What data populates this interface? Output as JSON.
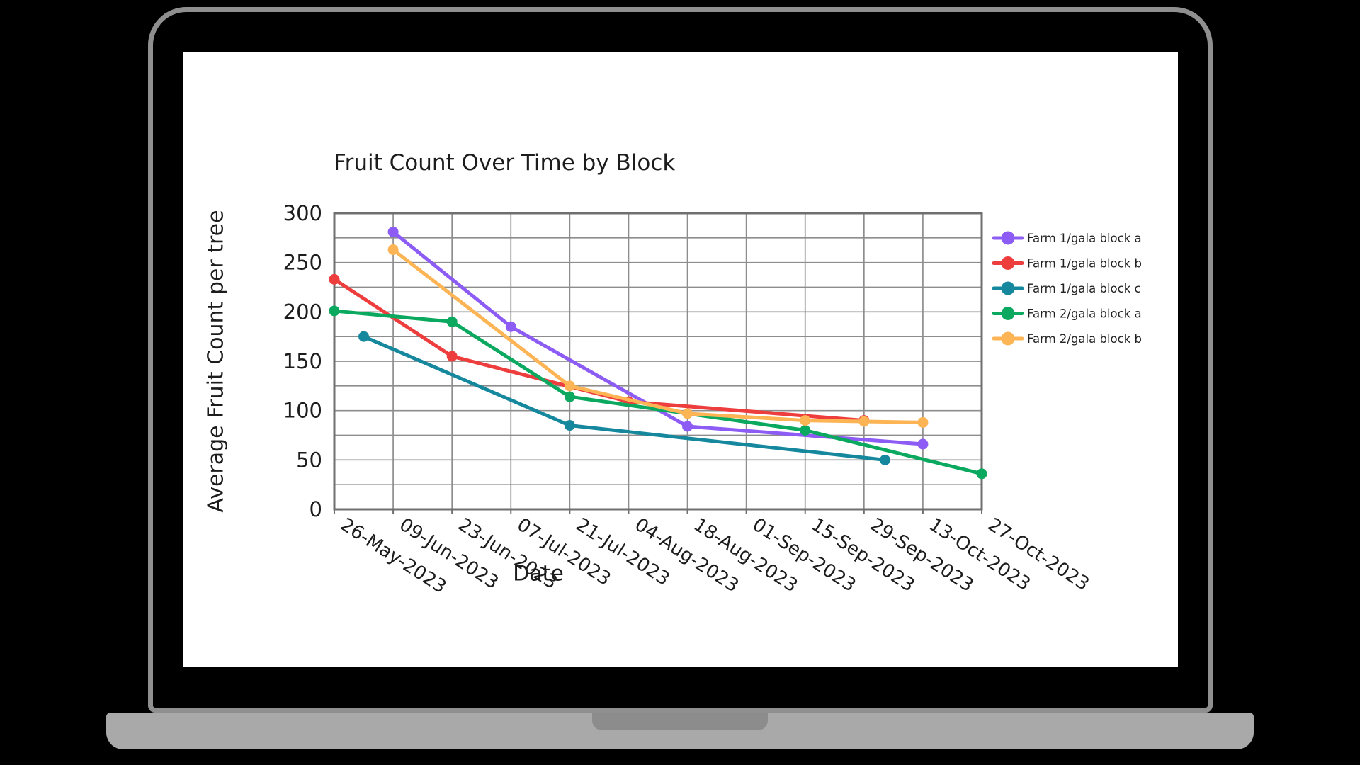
{
  "laptop": {
    "frame_color": "#8f8f8f",
    "bezel_color": "#000000",
    "screen_color": "#ffffff",
    "base_color": "#a9a9a9",
    "notch_color": "#8c8c8c"
  },
  "chart_data": {
    "type": "line",
    "title": "Fruit Count Over Time by Block",
    "xlabel": "Date",
    "ylabel": "Average Fruit Count per tree",
    "x_tick_labels": [
      "26-May-2023",
      "09-Jun-2023",
      "23-Jun-2023",
      "07-Jul-2023",
      "21-Jul-2023",
      "04-Aug-2023",
      "18-Aug-2023",
      "01-Sep-2023",
      "15-Sep-2023",
      "29-Sep-2023",
      "13-Oct-2023",
      "27-Oct-2023"
    ],
    "y_ticks": [
      0,
      50,
      100,
      150,
      200,
      250,
      300
    ],
    "ylim": [
      0,
      300
    ],
    "y_minor_step": 25,
    "grid": true,
    "legend_position": "right",
    "grid_color": "#8d8d8d",
    "border_color": "#6f6f6f",
    "text_color": "#1c1c1c",
    "series": [
      {
        "name": "Farm 1/gala block a",
        "color": "#8d5cf5",
        "points": [
          {
            "date": "09-Jun-2023",
            "value": 281
          },
          {
            "date": "07-Jul-2023",
            "value": 185
          },
          {
            "date": "18-Aug-2023",
            "value": 84
          },
          {
            "date": "13-Oct-2023",
            "value": 66
          }
        ]
      },
      {
        "name": "Farm 1/gala block b",
        "color": "#ee3d3d",
        "points": [
          {
            "date": "26-May-2023",
            "value": 233
          },
          {
            "date": "23-Jun-2023",
            "value": 155
          },
          {
            "date": "04-Aug-2023",
            "value": 109
          },
          {
            "date": "29-Sep-2023",
            "value": 90
          }
        ]
      },
      {
        "name": "Farm 1/gala block c",
        "color": "#16889e",
        "points": [
          {
            "date": "02-Jun-2023",
            "value": 175
          },
          {
            "date": "21-Jul-2023",
            "value": 85
          },
          {
            "date": "04-Oct-2023",
            "value": 50
          }
        ]
      },
      {
        "name": "Farm 2/gala block a",
        "color": "#0ba95f",
        "points": [
          {
            "date": "26-May-2023",
            "value": 201
          },
          {
            "date": "23-Jun-2023",
            "value": 190
          },
          {
            "date": "21-Jul-2023",
            "value": 114
          },
          {
            "date": "15-Sep-2023",
            "value": 80
          },
          {
            "date": "27-Oct-2023",
            "value": 36
          }
        ]
      },
      {
        "name": "Farm 2/gala block b",
        "color": "#fcb455",
        "points": [
          {
            "date": "09-Jun-2023",
            "value": 263
          },
          {
            "date": "21-Jul-2023",
            "value": 125
          },
          {
            "date": "18-Aug-2023",
            "value": 97
          },
          {
            "date": "15-Sep-2023",
            "value": 90
          },
          {
            "date": "29-Sep-2023",
            "value": 89
          },
          {
            "date": "13-Oct-2023",
            "value": 88
          }
        ]
      }
    ]
  }
}
